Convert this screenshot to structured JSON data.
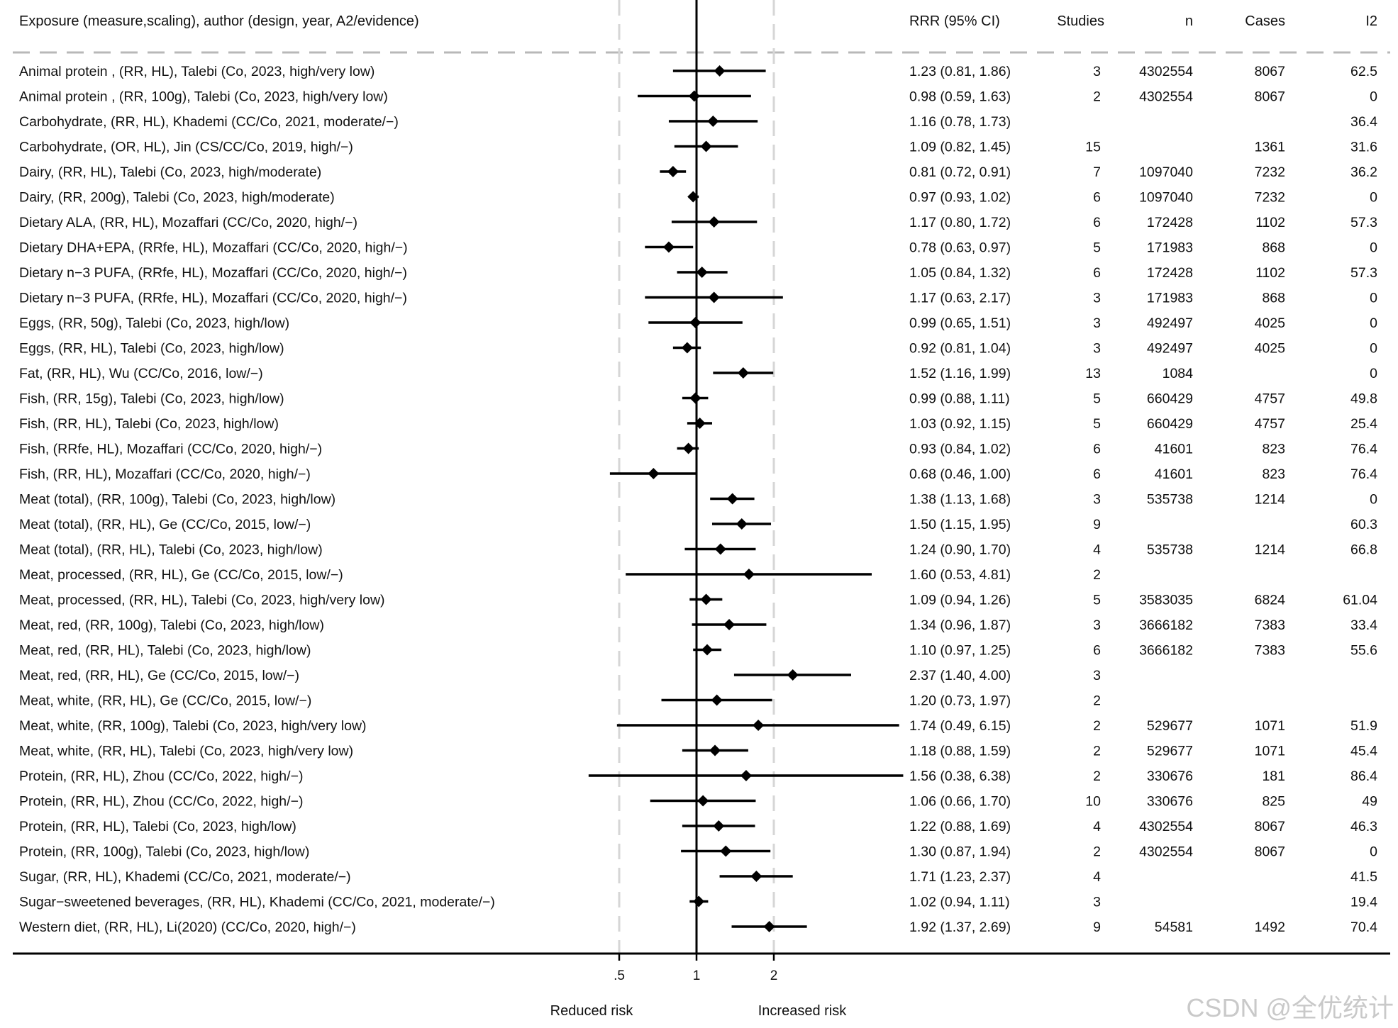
{
  "chart_data": {
    "type": "forest",
    "scale": "log",
    "reference_value": 1,
    "x_ticks": [
      {
        "value": 0.5,
        "label": ".5"
      },
      {
        "value": 1,
        "label": "1"
      },
      {
        "value": 2,
        "label": "2"
      }
    ],
    "x_labels": {
      "left": "Reduced risk",
      "right": "Increased risk"
    },
    "headers": {
      "exposure": "Exposure (measure,scaling), author (design, year, A2/evidence)",
      "rrr": "RRR (95% CI)",
      "studies": "Studies",
      "n": "n",
      "cases": "Cases",
      "i2": "I2"
    },
    "rows": [
      {
        "label": "Animal protein , (RR, HL), Talebi (Co, 2023, high/very low)",
        "est": 1.23,
        "lo": 0.81,
        "hi": 1.86,
        "ci_text": "1.23 (0.81, 1.86)",
        "studies": "3",
        "n": "4302554",
        "cases": "8067",
        "i2": "62.5"
      },
      {
        "label": "Animal protein , (RR, 100g), Talebi (Co, 2023, high/very low)",
        "est": 0.98,
        "lo": 0.59,
        "hi": 1.63,
        "ci_text": "0.98 (0.59, 1.63)",
        "studies": "2",
        "n": "4302554",
        "cases": "8067",
        "i2": "0"
      },
      {
        "label": "Carbohydrate, (RR, HL), Khademi (CC/Co, 2021, moderate/−)",
        "est": 1.16,
        "lo": 0.78,
        "hi": 1.73,
        "ci_text": "1.16 (0.78, 1.73)",
        "studies": "",
        "n": "",
        "cases": "",
        "i2": "36.4"
      },
      {
        "label": "Carbohydrate, (OR, HL), Jin (CS/CC/Co, 2019, high/−)",
        "est": 1.09,
        "lo": 0.82,
        "hi": 1.45,
        "ci_text": "1.09 (0.82, 1.45)",
        "studies": "15",
        "n": "",
        "cases": "1361",
        "i2": "31.6"
      },
      {
        "label": "Dairy, (RR, HL), Talebi (Co, 2023, high/moderate)",
        "est": 0.81,
        "lo": 0.72,
        "hi": 0.91,
        "ci_text": "0.81 (0.72, 0.91)",
        "studies": "7",
        "n": "1097040",
        "cases": "7232",
        "i2": "36.2"
      },
      {
        "label": "Dairy, (RR, 200g), Talebi (Co, 2023, high/moderate)",
        "est": 0.97,
        "lo": 0.93,
        "hi": 1.02,
        "ci_text": "0.97 (0.93, 1.02)",
        "studies": "6",
        "n": "1097040",
        "cases": "7232",
        "i2": "0"
      },
      {
        "label": "Dietary ALA, (RR, HL), Mozaffari (CC/Co, 2020, high/−)",
        "est": 1.17,
        "lo": 0.8,
        "hi": 1.72,
        "ci_text": "1.17 (0.80, 1.72)",
        "studies": "6",
        "n": "172428",
        "cases": "1102",
        "i2": "57.3"
      },
      {
        "label": "Dietary DHA+EPA, (RRfe, HL), Mozaffari (CC/Co, 2020, high/−)",
        "est": 0.78,
        "lo": 0.63,
        "hi": 0.97,
        "ci_text": "0.78 (0.63, 0.97)",
        "studies": "5",
        "n": "171983",
        "cases": "868",
        "i2": "0"
      },
      {
        "label": "Dietary n−3 PUFA, (RRfe, HL), Mozaffari (CC/Co, 2020, high/−)",
        "est": 1.05,
        "lo": 0.84,
        "hi": 1.32,
        "ci_text": "1.05 (0.84, 1.32)",
        "studies": "6",
        "n": "172428",
        "cases": "1102",
        "i2": "57.3"
      },
      {
        "label": "Dietary n−3 PUFA, (RRfe, HL), Mozaffari (CC/Co, 2020, high/−)",
        "est": 1.17,
        "lo": 0.63,
        "hi": 2.17,
        "ci_text": "1.17 (0.63, 2.17)",
        "studies": "3",
        "n": "171983",
        "cases": "868",
        "i2": "0"
      },
      {
        "label": "Eggs, (RR, 50g), Talebi (Co, 2023, high/low)",
        "est": 0.99,
        "lo": 0.65,
        "hi": 1.51,
        "ci_text": "0.99 (0.65, 1.51)",
        "studies": "3",
        "n": "492497",
        "cases": "4025",
        "i2": "0"
      },
      {
        "label": "Eggs, (RR, HL), Talebi (Co, 2023, high/low)",
        "est": 0.92,
        "lo": 0.81,
        "hi": 1.04,
        "ci_text": "0.92 (0.81, 1.04)",
        "studies": "3",
        "n": "492497",
        "cases": "4025",
        "i2": "0"
      },
      {
        "label": "Fat, (RR, HL), Wu (CC/Co, 2016, low/−)",
        "est": 1.52,
        "lo": 1.16,
        "hi": 1.99,
        "ci_text": "1.52 (1.16, 1.99)",
        "studies": "13",
        "n": "1084",
        "cases": "",
        "i2": "0"
      },
      {
        "label": "Fish, (RR, 15g), Talebi (Co, 2023, high/low)",
        "est": 0.99,
        "lo": 0.88,
        "hi": 1.11,
        "ci_text": "0.99 (0.88, 1.11)",
        "studies": "5",
        "n": "660429",
        "cases": "4757",
        "i2": "49.8"
      },
      {
        "label": "Fish, (RR, HL), Talebi (Co, 2023, high/low)",
        "est": 1.03,
        "lo": 0.92,
        "hi": 1.15,
        "ci_text": "1.03 (0.92, 1.15)",
        "studies": "5",
        "n": "660429",
        "cases": "4757",
        "i2": "25.4"
      },
      {
        "label": "Fish, (RRfe, HL), Mozaffari (CC/Co, 2020, high/−)",
        "est": 0.93,
        "lo": 0.84,
        "hi": 1.02,
        "ci_text": "0.93 (0.84, 1.02)",
        "studies": "6",
        "n": "41601",
        "cases": "823",
        "i2": "76.4"
      },
      {
        "label": "Fish, (RR, HL), Mozaffari (CC/Co, 2020, high/−)",
        "est": 0.68,
        "lo": 0.46,
        "hi": 1.0,
        "ci_text": "0.68 (0.46, 1.00)",
        "studies": "6",
        "n": "41601",
        "cases": "823",
        "i2": "76.4"
      },
      {
        "label": "Meat (total), (RR, 100g), Talebi (Co, 2023, high/low)",
        "est": 1.38,
        "lo": 1.13,
        "hi": 1.68,
        "ci_text": "1.38 (1.13, 1.68)",
        "studies": "3",
        "n": "535738",
        "cases": "1214",
        "i2": "0"
      },
      {
        "label": "Meat (total), (RR, HL), Ge (CC/Co, 2015, low/−)",
        "est": 1.5,
        "lo": 1.15,
        "hi": 1.95,
        "ci_text": "1.50 (1.15, 1.95)",
        "studies": "9",
        "n": "",
        "cases": "",
        "i2": "60.3"
      },
      {
        "label": "Meat (total), (RR, HL), Talebi (Co, 2023, high/low)",
        "est": 1.24,
        "lo": 0.9,
        "hi": 1.7,
        "ci_text": "1.24 (0.90, 1.70)",
        "studies": "4",
        "n": "535738",
        "cases": "1214",
        "i2": "66.8"
      },
      {
        "label": "Meat, processed, (RR, HL), Ge (CC/Co, 2015, low/−)",
        "est": 1.6,
        "lo": 0.53,
        "hi": 4.81,
        "ci_text": "1.60 (0.53, 4.81)",
        "studies": "2",
        "n": "",
        "cases": "",
        "i2": ""
      },
      {
        "label": "Meat, processed, (RR, HL), Talebi (Co, 2023, high/very low)",
        "est": 1.09,
        "lo": 0.94,
        "hi": 1.26,
        "ci_text": "1.09 (0.94, 1.26)",
        "studies": "5",
        "n": "3583035",
        "cases": "6824",
        "i2": "61.04"
      },
      {
        "label": "Meat, red, (RR, 100g), Talebi (Co, 2023, high/low)",
        "est": 1.34,
        "lo": 0.96,
        "hi": 1.87,
        "ci_text": "1.34 (0.96, 1.87)",
        "studies": "3",
        "n": "3666182",
        "cases": "7383",
        "i2": "33.4"
      },
      {
        "label": "Meat, red, (RR, HL), Talebi (Co, 2023, high/low)",
        "est": 1.1,
        "lo": 0.97,
        "hi": 1.25,
        "ci_text": "1.10 (0.97, 1.25)",
        "studies": "6",
        "n": "3666182",
        "cases": "7383",
        "i2": "55.6"
      },
      {
        "label": "Meat, red, (RR, HL), Ge (CC/Co, 2015, low/−)",
        "est": 2.37,
        "lo": 1.4,
        "hi": 4.0,
        "ci_text": "2.37 (1.40, 4.00)",
        "studies": "3",
        "n": "",
        "cases": "",
        "i2": ""
      },
      {
        "label": "Meat, white, (RR, HL), Ge (CC/Co, 2015, low/−)",
        "est": 1.2,
        "lo": 0.73,
        "hi": 1.97,
        "ci_text": "1.20 (0.73, 1.97)",
        "studies": "2",
        "n": "",
        "cases": "",
        "i2": ""
      },
      {
        "label": "Meat, white, (RR, 100g), Talebi (Co, 2023, high/very low)",
        "est": 1.74,
        "lo": 0.49,
        "hi": 6.15,
        "ci_text": "1.74 (0.49, 6.15)",
        "studies": "2",
        "n": "529677",
        "cases": "1071",
        "i2": "51.9"
      },
      {
        "label": "Meat, white, (RR, HL), Talebi (Co, 2023, high/very low)",
        "est": 1.18,
        "lo": 0.88,
        "hi": 1.59,
        "ci_text": "1.18 (0.88, 1.59)",
        "studies": "2",
        "n": "529677",
        "cases": "1071",
        "i2": "45.4"
      },
      {
        "label": "Protein, (RR, HL), Zhou (CC/Co, 2022, high/−)",
        "est": 1.56,
        "lo": 0.38,
        "hi": 6.38,
        "ci_text": "1.56 (0.38, 6.38)",
        "studies": "2",
        "n": "330676",
        "cases": "181",
        "i2": "86.4"
      },
      {
        "label": "Protein, (RR, HL), Zhou (CC/Co, 2022, high/−)",
        "est": 1.06,
        "lo": 0.66,
        "hi": 1.7,
        "ci_text": "1.06 (0.66, 1.70)",
        "studies": "10",
        "n": "330676",
        "cases": "825",
        "i2": "49"
      },
      {
        "label": "Protein, (RR, HL), Talebi (Co, 2023, high/low)",
        "est": 1.22,
        "lo": 0.88,
        "hi": 1.69,
        "ci_text": "1.22 (0.88, 1.69)",
        "studies": "4",
        "n": "4302554",
        "cases": "8067",
        "i2": "46.3"
      },
      {
        "label": "Protein, (RR, 100g), Talebi (Co, 2023, high/low)",
        "est": 1.3,
        "lo": 0.87,
        "hi": 1.94,
        "ci_text": "1.30 (0.87, 1.94)",
        "studies": "2",
        "n": "4302554",
        "cases": "8067",
        "i2": "0"
      },
      {
        "label": "Sugar, (RR, HL), Khademi (CC/Co, 2021, moderate/−)",
        "est": 1.71,
        "lo": 1.23,
        "hi": 2.37,
        "ci_text": "1.71 (1.23, 2.37)",
        "studies": "4",
        "n": "",
        "cases": "",
        "i2": "41.5"
      },
      {
        "label": "Sugar−sweetened beverages, (RR, HL), Khademi (CC/Co, 2021, moderate/−)",
        "est": 1.02,
        "lo": 0.94,
        "hi": 1.11,
        "ci_text": "1.02 (0.94, 1.11)",
        "studies": "3",
        "n": "",
        "cases": "",
        "i2": "19.4"
      },
      {
        "label": "Western diet, (RR, HL), Li(2020) (CC/Co, 2020, high/−)",
        "est": 1.92,
        "lo": 1.37,
        "hi": 2.69,
        "ci_text": "1.92 (1.37, 2.69)",
        "studies": "9",
        "n": "54581",
        "cases": "1492",
        "i2": "70.4"
      }
    ]
  },
  "watermark": "CSDN @全优统计"
}
